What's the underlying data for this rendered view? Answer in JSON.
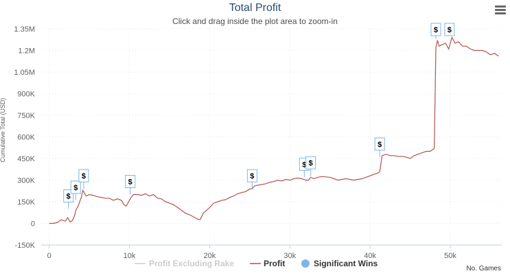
{
  "header": {
    "title": "Total Profit",
    "subtitle": "Click and drag inside the plot area to zoom-in",
    "menu_icon": "hamburger-menu-icon"
  },
  "colors": {
    "profit": "#b5514e",
    "profit_ex_rake": "#cccccc",
    "significant_wins": "#7cb5ec",
    "grid": "#e6e6e6",
    "axis_text": "#606060"
  },
  "chart_data": {
    "type": "line",
    "title": "Total Profit",
    "subtitle": "Click and drag inside the plot area to zoom-in",
    "xlabel": "No. Games",
    "ylabel": "Cumulative Total (USD)",
    "xlim": [
      -1000,
      56500
    ],
    "ylim": [
      -150000,
      1350000
    ],
    "grid": true,
    "legend_position": "bottom-center",
    "x_ticks": [
      {
        "value": 0,
        "label": "0"
      },
      {
        "value": 10000,
        "label": "10k"
      },
      {
        "value": 20000,
        "label": "20k"
      },
      {
        "value": 30000,
        "label": "30k"
      },
      {
        "value": 40000,
        "label": "40k"
      },
      {
        "value": 50000,
        "label": "50k"
      }
    ],
    "y_ticks": [
      {
        "value": -150000,
        "label": "-150K"
      },
      {
        "value": 0,
        "label": "0"
      },
      {
        "value": 150000,
        "label": "150K"
      },
      {
        "value": 300000,
        "label": "300K"
      },
      {
        "value": 450000,
        "label": "450K"
      },
      {
        "value": 600000,
        "label": "600K"
      },
      {
        "value": 750000,
        "label": "750K"
      },
      {
        "value": 900000,
        "label": "900K"
      },
      {
        "value": 1050000,
        "label": "1.05M"
      },
      {
        "value": 1200000,
        "label": "1.2M"
      },
      {
        "value": 1350000,
        "label": "1.35M"
      }
    ],
    "legend": [
      {
        "label": "Profit Excluding Rake",
        "visible": false
      },
      {
        "label": "Profit",
        "visible": true
      },
      {
        "label": "Significant Wins",
        "visible": true
      }
    ],
    "series": [
      {
        "name": "Profit",
        "x": [
          0,
          500,
          1000,
          1500,
          2000,
          2300,
          2600,
          2900,
          3200,
          3300,
          3600,
          3800,
          4000,
          4200,
          4400,
          4600,
          5000,
          5500,
          6000,
          6500,
          7000,
          7500,
          8000,
          8500,
          9000,
          9300,
          9600,
          9900,
          10200,
          10500,
          11000,
          11500,
          12000,
          12500,
          13000,
          13500,
          14000,
          14500,
          15000,
          15500,
          16000,
          16500,
          17000,
          17500,
          18000,
          18500,
          18800,
          19200,
          19600,
          20000,
          20500,
          21000,
          21500,
          22000,
          22500,
          23000,
          23500,
          24000,
          24500,
          25000,
          25300,
          25600,
          26000,
          26500,
          27000,
          27500,
          28000,
          28500,
          29000,
          29500,
          30000,
          30500,
          31000,
          31500,
          32000,
          32300,
          32600,
          33000,
          33500,
          34000,
          35000,
          36000,
          37000,
          38000,
          39000,
          39500,
          40000,
          40500,
          41000,
          41200,
          41500,
          42000,
          42500,
          43000,
          43500,
          44000,
          44500,
          45000,
          45500,
          46000,
          46500,
          47000,
          47500,
          48000,
          48200,
          48400,
          48600,
          49000,
          49400,
          49800,
          50200,
          50600,
          51000,
          51500,
          52000,
          52500,
          53000,
          53500,
          54000,
          54500,
          55000,
          55500,
          56000
        ],
        "y": [
          0,
          0,
          5000,
          25000,
          15000,
          40000,
          10000,
          20000,
          60000,
          90000,
          120000,
          150000,
          180000,
          230000,
          210000,
          190000,
          200000,
          195000,
          185000,
          180000,
          175000,
          175000,
          160000,
          170000,
          160000,
          130000,
          120000,
          150000,
          180000,
          200000,
          200000,
          195000,
          205000,
          190000,
          200000,
          175000,
          170000,
          150000,
          140000,
          130000,
          110000,
          90000,
          70000,
          60000,
          45000,
          30000,
          25000,
          70000,
          90000,
          110000,
          140000,
          150000,
          160000,
          165000,
          180000,
          190000,
          205000,
          215000,
          220000,
          240000,
          240000,
          260000,
          265000,
          270000,
          275000,
          285000,
          290000,
          300000,
          295000,
          305000,
          300000,
          310000,
          315000,
          310000,
          300000,
          300000,
          320000,
          310000,
          320000,
          325000,
          320000,
          300000,
          310000,
          300000,
          310000,
          320000,
          330000,
          340000,
          350000,
          360000,
          470000,
          480000,
          470000,
          470000,
          465000,
          465000,
          460000,
          450000,
          470000,
          480000,
          490000,
          500000,
          500000,
          520000,
          1220000,
          1270000,
          1230000,
          1240000,
          1250000,
          1210000,
          1290000,
          1250000,
          1260000,
          1230000,
          1230000,
          1210000,
          1200000,
          1200000,
          1200000,
          1190000,
          1170000,
          1180000,
          1160000
        ]
      },
      {
        "name": "Significant Wins",
        "points": [
          {
            "x": 2400,
            "y": 100000,
            "label": "$"
          },
          {
            "x": 3300,
            "y": 160000,
            "label": "$"
          },
          {
            "x": 4300,
            "y": 240000,
            "label": "$"
          },
          {
            "x": 10100,
            "y": 200000,
            "label": "$"
          },
          {
            "x": 25300,
            "y": 240000,
            "label": "$"
          },
          {
            "x": 31800,
            "y": 320000,
            "label": "$"
          },
          {
            "x": 32600,
            "y": 330000,
            "label": "$"
          },
          {
            "x": 41200,
            "y": 460000,
            "label": "$"
          },
          {
            "x": 48200,
            "y": 1280000,
            "label": "$"
          },
          {
            "x": 49900,
            "y": 1300000,
            "label": "$"
          }
        ]
      }
    ]
  }
}
